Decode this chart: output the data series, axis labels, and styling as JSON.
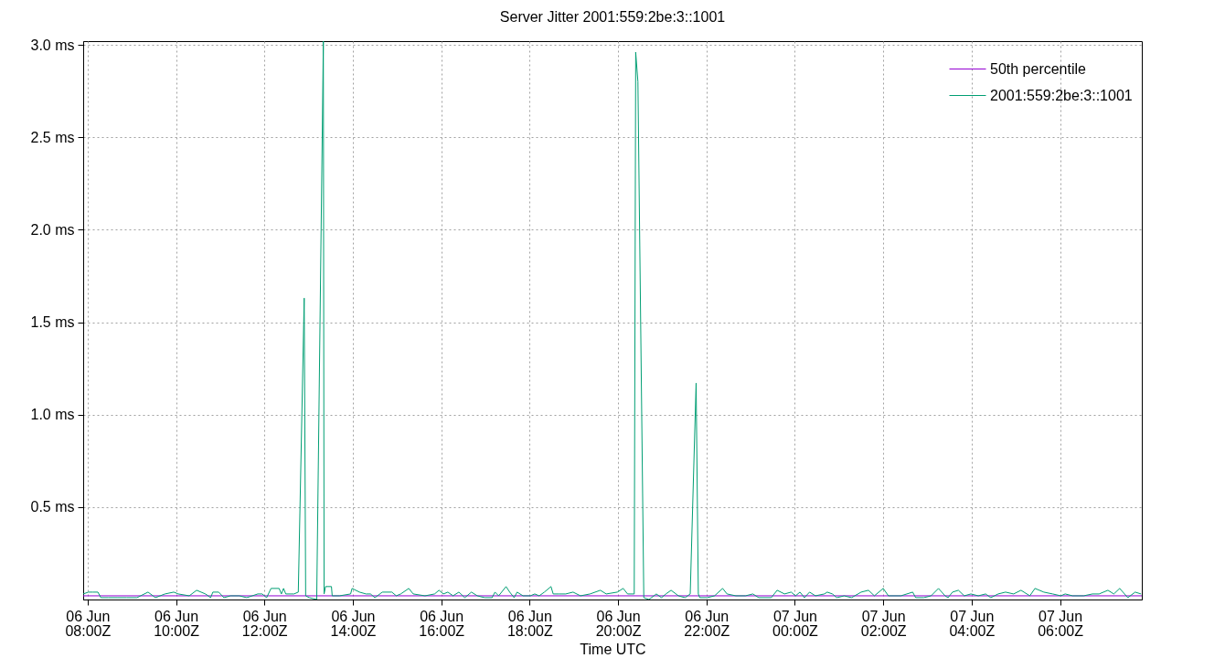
{
  "chart_data": {
    "type": "line",
    "title": "Server Jitter 2001:559:2be:3::1001",
    "xlabel": "Time UTC",
    "xlim": [
      "--06-06T07:54",
      "--06-07T07:51"
    ],
    "xticks": [
      {
        "value": "--06-06T08:00",
        "label": "06 Jun\n08:00Z"
      },
      {
        "value": "--06-06T10:00",
        "label": "06 Jun\n10:00Z"
      },
      {
        "value": "--06-06T12:00",
        "label": "06 Jun\n12:00Z"
      },
      {
        "value": "--06-06T14:00",
        "label": "06 Jun\n14:00Z"
      },
      {
        "value": "--06-06T16:00",
        "label": "06 Jun\n16:00Z"
      },
      {
        "value": "--06-06T18:00",
        "label": "06 Jun\n18:00Z"
      },
      {
        "value": "--06-06T20:00",
        "label": "06 Jun\n20:00Z"
      },
      {
        "value": "--06-06T22:00",
        "label": "06 Jun\n22:00Z"
      },
      {
        "value": "--06-07T00:00",
        "label": "07 Jun\n00:00Z"
      },
      {
        "value": "--06-07T02:00",
        "label": "07 Jun\n02:00Z"
      },
      {
        "value": "--06-07T04:00",
        "label": "07 Jun\n04:00Z"
      },
      {
        "value": "--06-07T06:00",
        "label": "07 Jun\n06:00Z"
      }
    ],
    "ylim": [
      0,
      3.02
    ],
    "yticks": [
      {
        "value": 0.5,
        "label": "0.5 ms"
      },
      {
        "value": 1.0,
        "label": "1.0 ms"
      },
      {
        "value": 1.5,
        "label": "1.5 ms"
      },
      {
        "value": 2.0,
        "label": "2.0 ms"
      },
      {
        "value": 2.5,
        "label": "2.5 ms"
      },
      {
        "value": 3.0,
        "label": "3.0 ms"
      }
    ],
    "grid": true,
    "legend": "top right",
    "x": [
      "--06-06T07:54",
      "--06-06T08:01",
      "--06-06T08:07",
      "--06-06T08:14",
      "--06-06T08:18",
      "--06-06T08:28",
      "--06-06T08:40",
      "--06-06T08:53",
      "--06-06T09:07",
      "--06-06T09:12",
      "--06-06T09:22",
      "--06-06T09:32",
      "--06-06T09:45",
      "--06-06T09:57",
      "--06-06T10:03",
      "--06-06T10:18",
      "--06-06T10:28",
      "--06-06T10:40",
      "--06-06T10:47",
      "--06-06T10:50",
      "--06-06T10:58",
      "--06-06T11:05",
      "--06-06T11:14",
      "--06-06T11:26",
      "--06-06T11:36",
      "--06-06T11:51",
      "--06-06T11:57",
      "--06-06T12:03",
      "--06-06T12:09",
      "--06-06T12:20",
      "--06-06T12:23",
      "--06-06T12:26",
      "--06-06T12:29",
      "--06-06T12:40",
      "--06-06T12:46",
      "--06-06T12:54",
      "--06-06T12:56",
      "--06-06T13:01",
      "--06-06T13:11",
      "--06-06T13:20",
      "--06-06T13:21",
      "--06-06T13:23",
      "--06-06T13:31",
      "--06-06T13:32",
      "--06-06T13:42",
      "--06-06T13:57",
      "--06-06T13:59",
      "--06-06T14:09",
      "--06-06T14:18",
      "--06-06T14:24",
      "--06-06T14:30",
      "--06-06T14:40",
      "--06-06T14:53",
      "--06-06T14:59",
      "--06-06T15:05",
      "--06-06T15:16",
      "--06-06T15:22",
      "--06-06T15:38",
      "--06-06T15:51",
      "--06-06T15:57",
      "--06-06T16:03",
      "--06-06T16:09",
      "--06-06T16:16",
      "--06-06T16:24",
      "--06-06T16:32",
      "--06-06T16:41",
      "--06-06T16:49",
      "--06-06T16:59",
      "--06-06T17:09",
      "--06-06T17:13",
      "--06-06T17:18",
      "--06-06T17:28",
      "--06-06T17:33",
      "--06-06T17:39",
      "--06-06T17:43",
      "--06-06T17:51",
      "--06-06T18:01",
      "--06-06T18:07",
      "--06-06T18:13",
      "--06-06T18:20",
      "--06-06T18:29",
      "--06-06T18:32",
      "--06-06T18:40",
      "--06-06T18:49",
      "--06-06T18:59",
      "--06-06T19:09",
      "--06-06T19:22",
      "--06-06T19:36",
      "--06-06T19:44",
      "--06-06T19:59",
      "--06-06T20:07",
      "--06-06T20:13",
      "--06-06T20:22",
      "--06-06T20:24",
      "--06-06T20:27",
      "--06-06T20:35",
      "--06-06T20:42",
      "--06-06T20:52",
      "--06-06T20:59",
      "--06-06T21:05",
      "--06-06T21:12",
      "--06-06T21:22",
      "--06-06T21:31",
      "--06-06T21:38",
      "--06-06T21:46",
      "--06-06T21:49",
      "--06-06T21:51",
      "--06-06T22:01",
      "--06-06T22:11",
      "--06-06T22:22",
      "--06-06T22:28",
      "--06-06T22:40",
      "--06-06T22:53",
      "--06-06T23:03",
      "--06-06T23:11",
      "--06-06T23:28",
      "--06-06T23:36",
      "--06-06T23:46",
      "--06-06T23:55",
      "--06-07T00:01",
      "--06-07T00:07",
      "--06-07T00:13",
      "--06-07T00:20",
      "--06-07T00:28",
      "--06-07T00:40",
      "--06-07T00:44",
      "--06-07T00:51",
      "--06-07T00:57",
      "--06-07T01:07",
      "--06-07T01:17",
      "--06-07T01:30",
      "--06-07T01:40",
      "--06-07T01:48",
      "--06-07T02:00",
      "--06-07T02:07",
      "--06-07T02:24",
      "--06-07T02:40",
      "--06-07T02:44",
      "--06-07T02:55",
      "--06-07T03:05",
      "--06-07T03:15",
      "--06-07T03:24",
      "--06-07T03:28",
      "--06-07T03:34",
      "--06-07T03:42",
      "--06-07T03:50",
      "--06-07T03:59",
      "--06-07T04:09",
      "--06-07T04:19",
      "--06-07T04:26",
      "--06-07T04:36",
      "--06-07T04:46",
      "--06-07T04:57",
      "--06-07T05:07",
      "--06-07T05:19",
      "--06-07T05:26",
      "--06-07T05:38",
      "--06-07T05:50",
      "--06-07T06:01",
      "--06-07T06:07",
      "--06-07T06:17",
      "--06-07T06:32",
      "--06-07T06:44",
      "--06-07T06:53",
      "--06-07T07:05",
      "--06-07T07:13",
      "--06-07T07:21",
      "--06-07T07:32",
      "--06-07T07:42",
      "--06-07T07:50"
    ],
    "series": [
      {
        "name": "50th percentile",
        "color": "#9400d3",
        "x": [
          "--06-06T07:54",
          "--06-07T07:51"
        ],
        "values": [
          0.02,
          0.02
        ]
      },
      {
        "name": "2001:559:2be:3::1001",
        "color": "#009e73",
        "values": [
          0.03,
          0.04,
          0.04,
          0.04,
          0.01,
          0.01,
          0.01,
          0.01,
          0.01,
          0.02,
          0.04,
          0.01,
          0.03,
          0.04,
          0.03,
          0.02,
          0.05,
          0.03,
          0.01,
          0.04,
          0.04,
          0.01,
          0.02,
          0.02,
          0.01,
          0.03,
          0.03,
          0.01,
          0.06,
          0.06,
          0.03,
          0.06,
          0.03,
          0.03,
          0.04,
          1.63,
          0.02,
          0.01,
          0.0,
          3.02,
          0.03,
          0.07,
          0.07,
          0.02,
          0.02,
          0.03,
          0.06,
          0.04,
          0.03,
          0.03,
          0.01,
          0.04,
          0.04,
          0.02,
          0.03,
          0.06,
          0.03,
          0.02,
          0.03,
          0.05,
          0.03,
          0.04,
          0.02,
          0.04,
          0.01,
          0.04,
          0.02,
          0.01,
          0.01,
          0.04,
          0.02,
          0.07,
          0.04,
          0.01,
          0.04,
          0.02,
          0.02,
          0.03,
          0.02,
          0.04,
          0.07,
          0.03,
          0.03,
          0.03,
          0.04,
          0.02,
          0.03,
          0.05,
          0.03,
          0.04,
          0.06,
          0.03,
          0.03,
          2.96,
          2.8,
          0.01,
          0.0,
          0.03,
          0.01,
          0.03,
          0.05,
          0.02,
          0.01,
          0.03,
          1.17,
          0.03,
          0.01,
          0.01,
          0.02,
          0.06,
          0.03,
          0.02,
          0.02,
          0.03,
          0.01,
          0.01,
          0.05,
          0.03,
          0.04,
          0.02,
          0.04,
          0.01,
          0.04,
          0.02,
          0.03,
          0.04,
          0.03,
          0.01,
          0.02,
          0.01,
          0.04,
          0.05,
          0.02,
          0.06,
          0.02,
          0.02,
          0.04,
          0.01,
          0.01,
          0.02,
          0.06,
          0.02,
          0.01,
          0.04,
          0.05,
          0.02,
          0.03,
          0.02,
          0.03,
          0.01,
          0.03,
          0.04,
          0.03,
          0.05,
          0.02,
          0.06,
          0.04,
          0.03,
          0.02,
          0.03,
          0.02,
          0.02,
          0.03,
          0.03,
          0.05,
          0.03,
          0.06,
          0.01,
          0.04,
          0.03
        ]
      }
    ]
  }
}
